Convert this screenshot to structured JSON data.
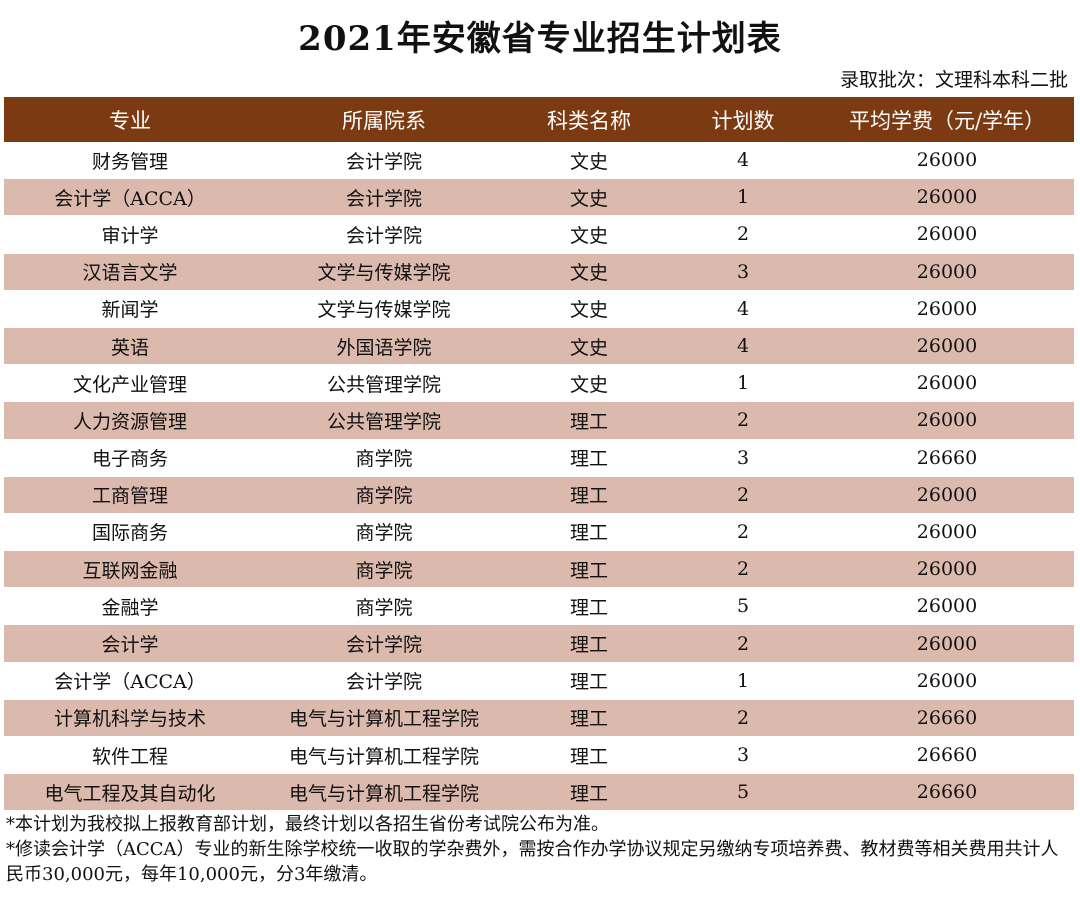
{
  "title": "2021年安徽省专业招生计划表",
  "batch": "录取批次：文理科本科二批",
  "table": {
    "headers": [
      "专业",
      "所属院系",
      "科类名称",
      "计划数",
      "平均学费（元/学年）"
    ],
    "rows": [
      [
        "财务管理",
        "会计学院",
        "文史",
        "4",
        "26000"
      ],
      [
        "会计学（ACCA）",
        "会计学院",
        "文史",
        "1",
        "26000"
      ],
      [
        "审计学",
        "会计学院",
        "文史",
        "2",
        "26000"
      ],
      [
        "汉语言文学",
        "文学与传媒学院",
        "文史",
        "3",
        "26000"
      ],
      [
        "新闻学",
        "文学与传媒学院",
        "文史",
        "4",
        "26000"
      ],
      [
        "英语",
        "外国语学院",
        "文史",
        "4",
        "26000"
      ],
      [
        "文化产业管理",
        "公共管理学院",
        "文史",
        "1",
        "26000"
      ],
      [
        "人力资源管理",
        "公共管理学院",
        "理工",
        "2",
        "26000"
      ],
      [
        "电子商务",
        "商学院",
        "理工",
        "3",
        "26660"
      ],
      [
        "工商管理",
        "商学院",
        "理工",
        "2",
        "26000"
      ],
      [
        "国际商务",
        "商学院",
        "理工",
        "2",
        "26000"
      ],
      [
        "互联网金融",
        "商学院",
        "理工",
        "2",
        "26000"
      ],
      [
        "金融学",
        "商学院",
        "理工",
        "5",
        "26000"
      ],
      [
        "会计学",
        "会计学院",
        "理工",
        "2",
        "26000"
      ],
      [
        "会计学（ACCA）",
        "会计学院",
        "理工",
        "1",
        "26000"
      ],
      [
        "计算机科学与技术",
        "电气与计算机工程学院",
        "理工",
        "2",
        "26660"
      ],
      [
        "软件工程",
        "电气与计算机工程学院",
        "理工",
        "3",
        "26660"
      ],
      [
        "电气工程及其自动化",
        "电气与计算机工程学院",
        "理工",
        "5",
        "26660"
      ]
    ]
  },
  "notes": [
    "*本计划为我校拟上报教育部计划，最终计划以各招生省份考试院公布为准。",
    "*修读会计学（ACCA）专业的新生除学校统一收取的学杂费外，需按合作办学协议规定另缴纳专项培养费、教材费等相关费用共计人民币30,000元，每年10,000元，分3年缴清。"
  ],
  "colors": {
    "header_bg": "#7b3a11",
    "alt_row_bg": "#dcb9ad"
  }
}
